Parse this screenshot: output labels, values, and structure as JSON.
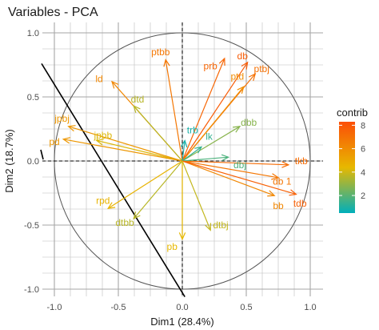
{
  "chart_data": {
    "type": "scatter",
    "title": "Variables - PCA",
    "xlabel": "Dim1 (28.4%)",
    "ylabel": "Dim2 (18.7%)",
    "xlim": [
      -1.05,
      1.05
    ],
    "ylim": [
      -1.05,
      1.05
    ],
    "x_ticks": [
      -1.0,
      -0.5,
      0.0,
      0.5,
      1.0
    ],
    "y_ticks": [
      -1.0,
      -0.5,
      0.0,
      0.5,
      1.0
    ],
    "x_tick_labels": [
      "-1.0",
      "-0.5",
      "0.0",
      "0.5",
      "1.0"
    ],
    "y_tick_labels": [
      "-1.0",
      "-0.5",
      "0.0",
      "0.5",
      "1.0"
    ],
    "grid": true,
    "unit_circle": true,
    "legend": {
      "title": "contrib",
      "placement": "right",
      "ticks": [
        2,
        4,
        6,
        8
      ],
      "tick_labels": [
        "2",
        "4",
        "6",
        "8"
      ],
      "range": [
        0.5,
        8.3
      ],
      "colors": [
        "#00AFBB",
        "#E7B800",
        "#FC4E07"
      ]
    },
    "variables": [
      {
        "name": "ptbb",
        "x": -0.13,
        "y": 0.79,
        "contrib": 6.8
      },
      {
        "name": "prb",
        "x": 0.33,
        "y": 0.8,
        "contrib": 7.4
      },
      {
        "name": "db",
        "x": 0.51,
        "y": 0.77,
        "contrib": 7.8
      },
      {
        "name": "ptbj",
        "x": 0.57,
        "y": 0.68,
        "contrib": 7.0
      },
      {
        "name": "ptd",
        "x": 0.48,
        "y": 0.58,
        "contrib": 6.0
      },
      {
        "name": "ld",
        "x": -0.55,
        "y": 0.62,
        "contrib": 6.2
      },
      {
        "name": "dtd",
        "x": -0.38,
        "y": 0.43,
        "contrib": 3.6
      },
      {
        "name": "dbb",
        "x": 0.45,
        "y": 0.27,
        "contrib": 2.8
      },
      {
        "name": "jpbj",
        "x": -0.89,
        "y": 0.27,
        "contrib": 5.6
      },
      {
        "name": "jpbb",
        "x": -0.67,
        "y": 0.16,
        "contrib": 4.2
      },
      {
        "name": "pd",
        "x": -0.93,
        "y": 0.17,
        "contrib": 5.6
      },
      {
        "name": "trb",
        "x": 0.02,
        "y": 0.16,
        "contrib": 0.9
      },
      {
        "name": "lk",
        "x": 0.15,
        "y": 0.11,
        "contrib": 1.4
      },
      {
        "name": "tkb",
        "x": 0.83,
        "y": -0.03,
        "contrib": 7.2
      },
      {
        "name": "dbj",
        "x": 0.36,
        "y": 0.03,
        "contrib": 1.8
      },
      {
        "name": "db 1",
        "x": 0.75,
        "y": -0.13,
        "contrib": 6.8
      },
      {
        "name": "bb",
        "x": 0.72,
        "y": -0.27,
        "contrib": 6.2
      },
      {
        "name": "tdb",
        "x": 0.89,
        "y": -0.26,
        "contrib": 7.6
      },
      {
        "name": "rpd",
        "x": -0.58,
        "y": -0.37,
        "contrib": 4.6
      },
      {
        "name": "dtbb",
        "x": -0.38,
        "y": -0.45,
        "contrib": 3.6
      },
      {
        "name": "dtbj",
        "x": 0.22,
        "y": -0.54,
        "contrib": 3.8
      },
      {
        "name": "pb",
        "x": 0.0,
        "y": -0.61,
        "contrib": 4.4
      }
    ],
    "label_offsets": {
      "ptbb": [
        -0.04,
        0.06
      ],
      "prb": [
        -0.11,
        -0.06
      ],
      "db": [
        -0.04,
        0.05
      ],
      "ptbj": [
        0.05,
        0.04
      ],
      "ptd": [
        -0.05,
        0.08
      ],
      "ld": [
        -0.1,
        0.02
      ],
      "dtd": [
        0.03,
        0.05
      ],
      "dbb": [
        0.07,
        0.03
      ],
      "jpbj": [
        -0.05,
        0.06
      ],
      "jpbb": [
        0.05,
        0.04
      ],
      "pd": [
        -0.07,
        -0.02
      ],
      "trb": [
        0.06,
        0.08
      ],
      "lk": [
        0.06,
        0.08
      ],
      "tkb": [
        0.1,
        0.03
      ],
      "dbj": [
        0.09,
        -0.06
      ],
      "db 1": [
        0.03,
        -0.03
      ],
      "bb": [
        0.03,
        -0.08
      ],
      "tdb": [
        0.03,
        -0.07
      ],
      "rpd": [
        -0.04,
        0.06
      ],
      "dtbb": [
        -0.07,
        -0.03
      ],
      "dtbj": [
        0.08,
        0.04
      ],
      "pb": [
        -0.08,
        -0.06
      ]
    }
  }
}
